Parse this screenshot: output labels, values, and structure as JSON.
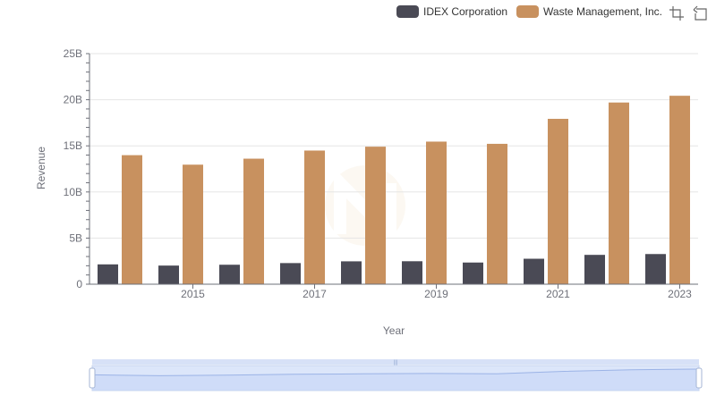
{
  "legend": {
    "items": [
      {
        "label": "IDEX Corporation",
        "color": "#4a4a55"
      },
      {
        "label": "Waste Management, Inc.",
        "color": "#c8915f"
      }
    ]
  },
  "toolbox": {
    "icons": [
      "zoom-icon",
      "restore-icon"
    ]
  },
  "chart_data": {
    "type": "bar",
    "categories": [
      "2014",
      "2015",
      "2016",
      "2017",
      "2018",
      "2019",
      "2020",
      "2021",
      "2022",
      "2023"
    ],
    "x_tick_labels": [
      "2015",
      "2017",
      "2019",
      "2021",
      "2023"
    ],
    "series": [
      {
        "name": "IDEX Corporation",
        "color": "#4a4a55",
        "values": [
          2.15,
          2.02,
          2.11,
          2.29,
          2.48,
          2.49,
          2.35,
          2.76,
          3.18,
          3.27
        ]
      },
      {
        "name": "Waste Management, Inc.",
        "color": "#c8915f",
        "values": [
          13.99,
          12.96,
          13.61,
          14.49,
          14.91,
          15.46,
          15.22,
          17.93,
          19.7,
          20.43
        ]
      }
    ],
    "xlabel": "Year",
    "ylabel": "Revenue",
    "ylim": [
      0,
      25
    ],
    "y_ticks": [
      0,
      5,
      10,
      15,
      20,
      25
    ],
    "y_tick_labels": [
      "0",
      "5B",
      "10B",
      "15B",
      "20B",
      "25B"
    ],
    "grid": true,
    "legend_position": "top-right",
    "data_zoom": true
  }
}
